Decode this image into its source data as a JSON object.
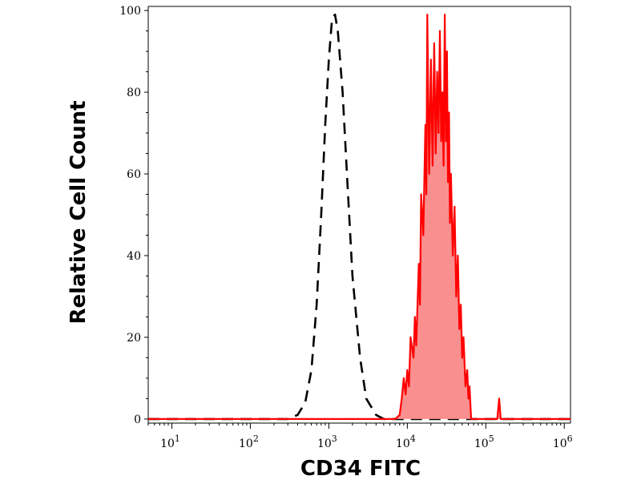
{
  "chart_data": {
    "type": "area",
    "xlabel": "CD34 FITC",
    "ylabel": "Relative Cell Count",
    "x_scale": "log",
    "xlim": [
      5,
      1200000
    ],
    "ylim": [
      -1,
      101
    ],
    "x_ticks": [
      {
        "value": 10,
        "base": "10",
        "exp": "1"
      },
      {
        "value": 100,
        "base": "10",
        "exp": "2"
      },
      {
        "value": 1000,
        "base": "10",
        "exp": "3"
      },
      {
        "value": 10000,
        "base": "10",
        "exp": "4"
      },
      {
        "value": 100000,
        "base": "10",
        "exp": "5"
      },
      {
        "value": 1000000,
        "base": "10",
        "exp": "6"
      }
    ],
    "y_ticks": [
      0,
      20,
      40,
      60,
      80,
      100
    ],
    "grid": false,
    "series": [
      {
        "style": "dashed-line",
        "color": "#000000",
        "points": [
          [
            5,
            0
          ],
          [
            300,
            0
          ],
          [
            400,
            1
          ],
          [
            500,
            4
          ],
          [
            600,
            12
          ],
          [
            700,
            28
          ],
          [
            800,
            50
          ],
          [
            900,
            72
          ],
          [
            1000,
            88
          ],
          [
            1100,
            98
          ],
          [
            1200,
            99
          ],
          [
            1300,
            95
          ],
          [
            1500,
            80
          ],
          [
            1700,
            60
          ],
          [
            2000,
            35
          ],
          [
            2500,
            15
          ],
          [
            3000,
            5
          ],
          [
            4000,
            1
          ],
          [
            5000,
            0
          ],
          [
            1200000,
            0
          ]
        ]
      },
      {
        "style": "filled",
        "color": "#ff0000",
        "fill": "#fa8f8f",
        "points": [
          [
            5,
            0
          ],
          [
            7000,
            0
          ],
          [
            8000,
            1
          ],
          [
            8500,
            5
          ],
          [
            9000,
            10
          ],
          [
            9500,
            6
          ],
          [
            10000,
            12
          ],
          [
            10500,
            8
          ],
          [
            11000,
            20
          ],
          [
            12000,
            15
          ],
          [
            12500,
            25
          ],
          [
            13000,
            18
          ],
          [
            14000,
            38
          ],
          [
            14500,
            28
          ],
          [
            15000,
            55
          ],
          [
            16000,
            45
          ],
          [
            17000,
            72
          ],
          [
            17500,
            55
          ],
          [
            18000,
            99
          ],
          [
            19000,
            60
          ],
          [
            20000,
            88
          ],
          [
            21000,
            62
          ],
          [
            22000,
            92
          ],
          [
            23000,
            65
          ],
          [
            24000,
            85
          ],
          [
            25000,
            70
          ],
          [
            26000,
            95
          ],
          [
            27000,
            68
          ],
          [
            28000,
            80
          ],
          [
            29000,
            62
          ],
          [
            30000,
            99
          ],
          [
            31000,
            68
          ],
          [
            32000,
            90
          ],
          [
            33000,
            58
          ],
          [
            34000,
            75
          ],
          [
            35000,
            48
          ],
          [
            36000,
            60
          ],
          [
            38000,
            40
          ],
          [
            40000,
            52
          ],
          [
            42000,
            30
          ],
          [
            44000,
            40
          ],
          [
            46000,
            22
          ],
          [
            48000,
            28
          ],
          [
            50000,
            15
          ],
          [
            52000,
            20
          ],
          [
            55000,
            8
          ],
          [
            58000,
            12
          ],
          [
            60000,
            5
          ],
          [
            62000,
            8
          ],
          [
            65000,
            0
          ],
          [
            140000,
            0
          ],
          [
            148000,
            5
          ],
          [
            155000,
            0
          ],
          [
            1200000,
            0
          ]
        ]
      }
    ]
  }
}
